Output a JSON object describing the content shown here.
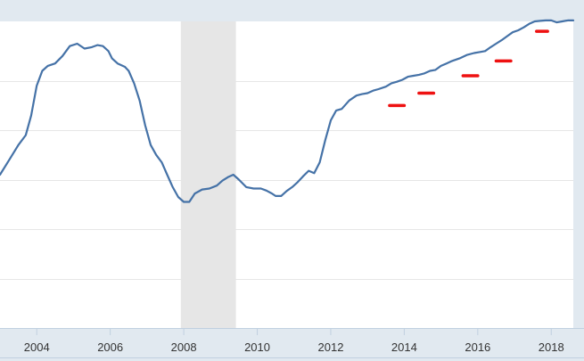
{
  "chart_data": {
    "type": "line",
    "title": "",
    "xlabel": "",
    "ylabel": "",
    "xlim": [
      2003.0,
      2018.6
    ],
    "ylim": [
      0,
      6.2
    ],
    "grid": true,
    "x_ticks": [
      {
        "value": 2004,
        "label": "2004"
      },
      {
        "value": 2006,
        "label": "2006"
      },
      {
        "value": 2008,
        "label": "2008"
      },
      {
        "value": 2010,
        "label": "2010"
      },
      {
        "value": 2012,
        "label": "2012"
      },
      {
        "value": 2014,
        "label": "2014"
      },
      {
        "value": 2016,
        "label": "2016"
      },
      {
        "value": 2018,
        "label": "2018"
      }
    ],
    "y_gridlines": [
      1,
      2,
      3,
      4,
      5
    ],
    "recession": {
      "start": 2007.92,
      "end": 2009.42,
      "color": "#e6e6e6"
    },
    "series": [
      {
        "color": "#4572a7",
        "x": [
          2003.0,
          2003.25,
          2003.5,
          2003.7,
          2003.85,
          2004.0,
          2004.15,
          2004.3,
          2004.5,
          2004.7,
          2004.9,
          2005.1,
          2005.3,
          2005.5,
          2005.65,
          2005.8,
          2005.95,
          2006.05,
          2006.2,
          2006.4,
          2006.5,
          2006.65,
          2006.8,
          2006.95,
          2007.1,
          2007.25,
          2007.4,
          2007.55,
          2007.7,
          2007.85,
          2008.0,
          2008.15,
          2008.3,
          2008.5,
          2008.7,
          2008.9,
          2009.05,
          2009.2,
          2009.35,
          2009.5,
          2009.7,
          2009.9,
          2010.1,
          2010.25,
          2010.4,
          2010.5,
          2010.65,
          2010.8,
          2010.95,
          2011.1,
          2011.25,
          2011.4,
          2011.55,
          2011.7,
          2011.85,
          2012.0,
          2012.15,
          2012.3,
          2012.5,
          2012.7,
          2012.85,
          2013.0,
          2013.15,
          2013.3,
          2013.5,
          2013.65,
          2013.8,
          2013.95,
          2014.1,
          2014.25,
          2014.4,
          2014.55,
          2014.7,
          2014.85,
          2015.0,
          2015.15,
          2015.3,
          2015.5,
          2015.7,
          2015.9,
          2016.05,
          2016.2,
          2016.35,
          2016.5,
          2016.65,
          2016.8,
          2016.95,
          2017.1,
          2017.25,
          2017.4,
          2017.55,
          2017.7,
          2017.85,
          2018.0,
          2018.15,
          2018.3,
          2018.45,
          2018.6
        ],
        "y": [
          3.1,
          3.4,
          3.7,
          3.9,
          4.3,
          4.9,
          5.2,
          5.3,
          5.35,
          5.5,
          5.7,
          5.75,
          5.65,
          5.68,
          5.72,
          5.7,
          5.6,
          5.45,
          5.35,
          5.28,
          5.2,
          4.95,
          4.6,
          4.1,
          3.7,
          3.5,
          3.35,
          3.1,
          2.85,
          2.65,
          2.55,
          2.55,
          2.72,
          2.8,
          2.82,
          2.88,
          2.98,
          3.05,
          3.1,
          3.0,
          2.85,
          2.82,
          2.82,
          2.78,
          2.72,
          2.67,
          2.67,
          2.77,
          2.85,
          2.95,
          3.07,
          3.18,
          3.13,
          3.35,
          3.8,
          4.2,
          4.4,
          4.43,
          4.6,
          4.7,
          4.73,
          4.75,
          4.8,
          4.83,
          4.88,
          4.95,
          4.98,
          5.02,
          5.08,
          5.1,
          5.12,
          5.15,
          5.2,
          5.22,
          5.3,
          5.35,
          5.4,
          5.45,
          5.52,
          5.56,
          5.58,
          5.6,
          5.68,
          5.75,
          5.82,
          5.9,
          5.98,
          6.02,
          6.08,
          6.15,
          6.2,
          6.21,
          6.22,
          6.22,
          6.18,
          6.2,
          6.22,
          6.22
        ]
      }
    ],
    "annotations": [
      {
        "x1": 2013.6,
        "x2": 2014.0,
        "y": 4.5,
        "color": "#ee1111"
      },
      {
        "x1": 2014.4,
        "x2": 2014.8,
        "y": 4.75,
        "color": "#ee1111"
      },
      {
        "x1": 2015.6,
        "x2": 2016.0,
        "y": 5.1,
        "color": "#ee1111"
      },
      {
        "x1": 2016.5,
        "x2": 2016.9,
        "y": 5.4,
        "color": "#ee1111"
      },
      {
        "x1": 2017.6,
        "x2": 2017.9,
        "y": 6.0,
        "color": "#ee1111"
      }
    ]
  },
  "colors": {
    "outer_background": "#e1e9f0",
    "plot_background": "#ffffff",
    "grid": "#e6e6e6",
    "axis": "#c0d0e0",
    "line": "#4572a7",
    "marker": "#ee1111"
  }
}
